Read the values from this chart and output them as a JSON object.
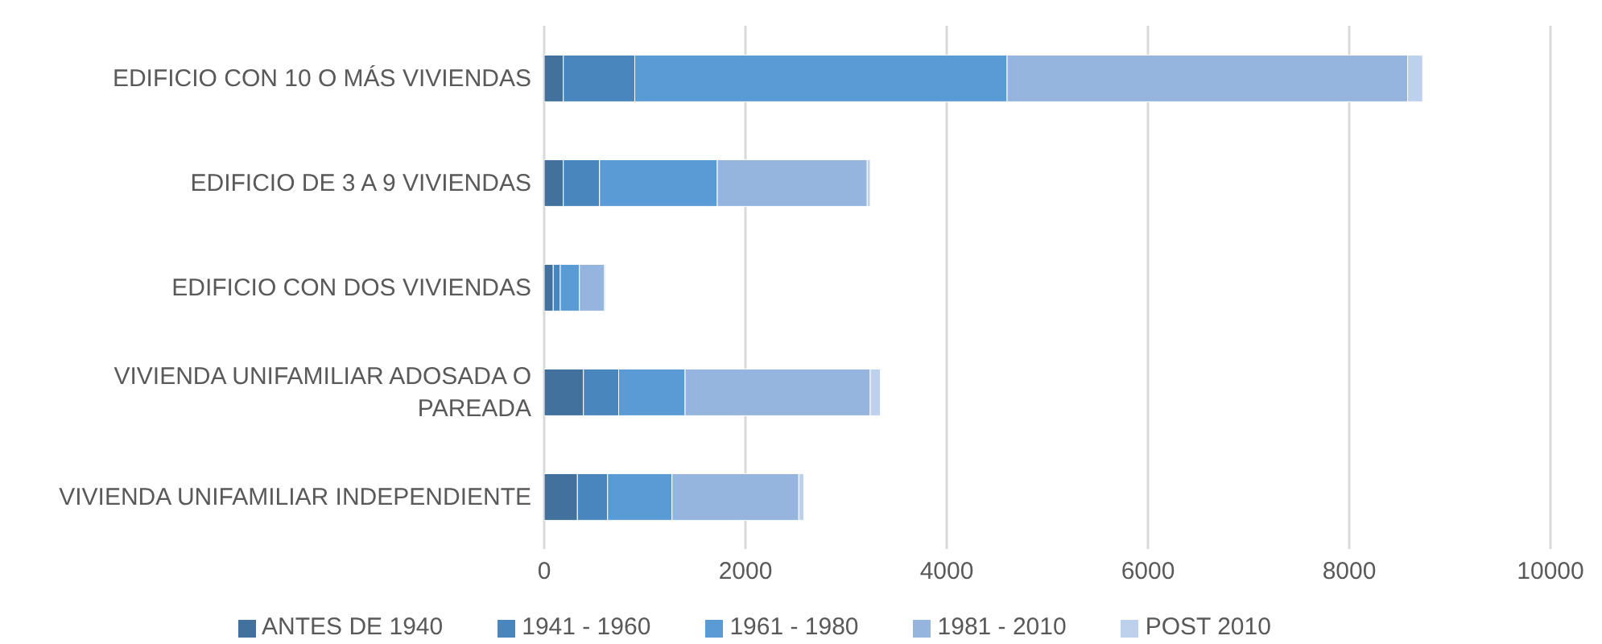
{
  "chart_data": {
    "type": "bar",
    "orientation": "horizontal",
    "stacked": true,
    "categories": [
      "EDIFICIO CON 10 O MÁS VIVIENDAS",
      "EDIFICIO DE 3 A 9 VIVIENDAS",
      "EDIFICIO CON DOS VIVIENDAS",
      "VIVIENDA UNIFAMILIAR ADOSADA O PAREADA",
      "VIVIENDA UNIFAMILIAR INDEPENDIENTE"
    ],
    "series": [
      {
        "name": "ANTES DE 1940",
        "color": "#41719c",
        "values": [
          190,
          190,
          90,
          390,
          330
        ]
      },
      {
        "name": "1941 - 1960",
        "color": "#4a86be",
        "values": [
          710,
          360,
          70,
          350,
          300
        ]
      },
      {
        "name": "1961 - 1980",
        "color": "#5b9bd5",
        "values": [
          3700,
          1170,
          190,
          660,
          640
        ]
      },
      {
        "name": "1981 - 2010",
        "color": "#95b5df",
        "values": [
          3980,
          1490,
          250,
          1840,
          1260
        ]
      },
      {
        "name": "POST 2010",
        "color": "#bdd1ec",
        "values": [
          150,
          30,
          10,
          100,
          50
        ]
      }
    ],
    "xlim": [
      0,
      10000
    ],
    "xticks": [
      0,
      2000,
      4000,
      6000,
      8000,
      10000
    ],
    "grid": "x",
    "legend": "bottom"
  }
}
